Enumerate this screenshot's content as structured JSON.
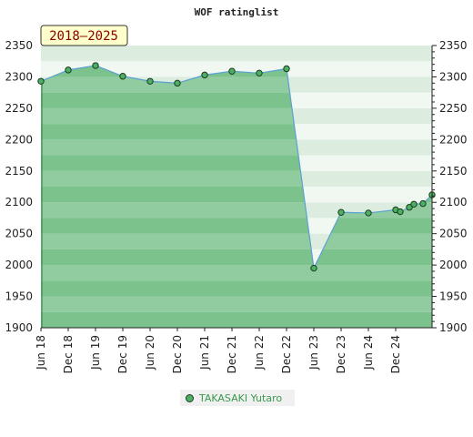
{
  "chart_data": {
    "type": "area",
    "title": "WOF ratinglist",
    "badge": "2018–2025",
    "y_ticks": [
      1900,
      1950,
      2000,
      2050,
      2100,
      2150,
      2200,
      2250,
      2300,
      2350
    ],
    "ylim": [
      1900,
      2350
    ],
    "xlim": [
      "2018-06",
      "2025-08"
    ],
    "x_ticks": [
      "Jun 18",
      "Dec 18",
      "Jun 19",
      "Dec 19",
      "Jun 20",
      "Dec 20",
      "Jun 21",
      "Dec 21",
      "Jun 22",
      "Dec 22",
      "Jun 23",
      "Dec 23",
      "Jun 24",
      "Dec 24"
    ],
    "series": [
      {
        "name": "TAKASAKI Yutaro",
        "color": "#4caf63",
        "line_color": "#5ca0d3",
        "points": [
          [
            "2018-06",
            2293
          ],
          [
            "2018-12",
            2311
          ],
          [
            "2019-06",
            2318
          ],
          [
            "2019-12",
            2301
          ],
          [
            "2020-06",
            2293
          ],
          [
            "2020-12",
            2290
          ],
          [
            "2021-06",
            2303
          ],
          [
            "2021-12",
            2309
          ],
          [
            "2022-06",
            2306
          ],
          [
            "2022-12",
            2313
          ],
          [
            "2023-06",
            1995
          ],
          [
            "2023-12",
            2084
          ],
          [
            "2024-06",
            2083
          ],
          [
            "2024-12",
            2088
          ],
          [
            "2025-01",
            2085
          ],
          [
            "2025-03",
            2092
          ],
          [
            "2025-04",
            2097
          ],
          [
            "2025-06",
            2098
          ],
          [
            "2025-08",
            2112
          ]
        ]
      }
    ],
    "grid": true,
    "legend_position": "bottom-center"
  }
}
